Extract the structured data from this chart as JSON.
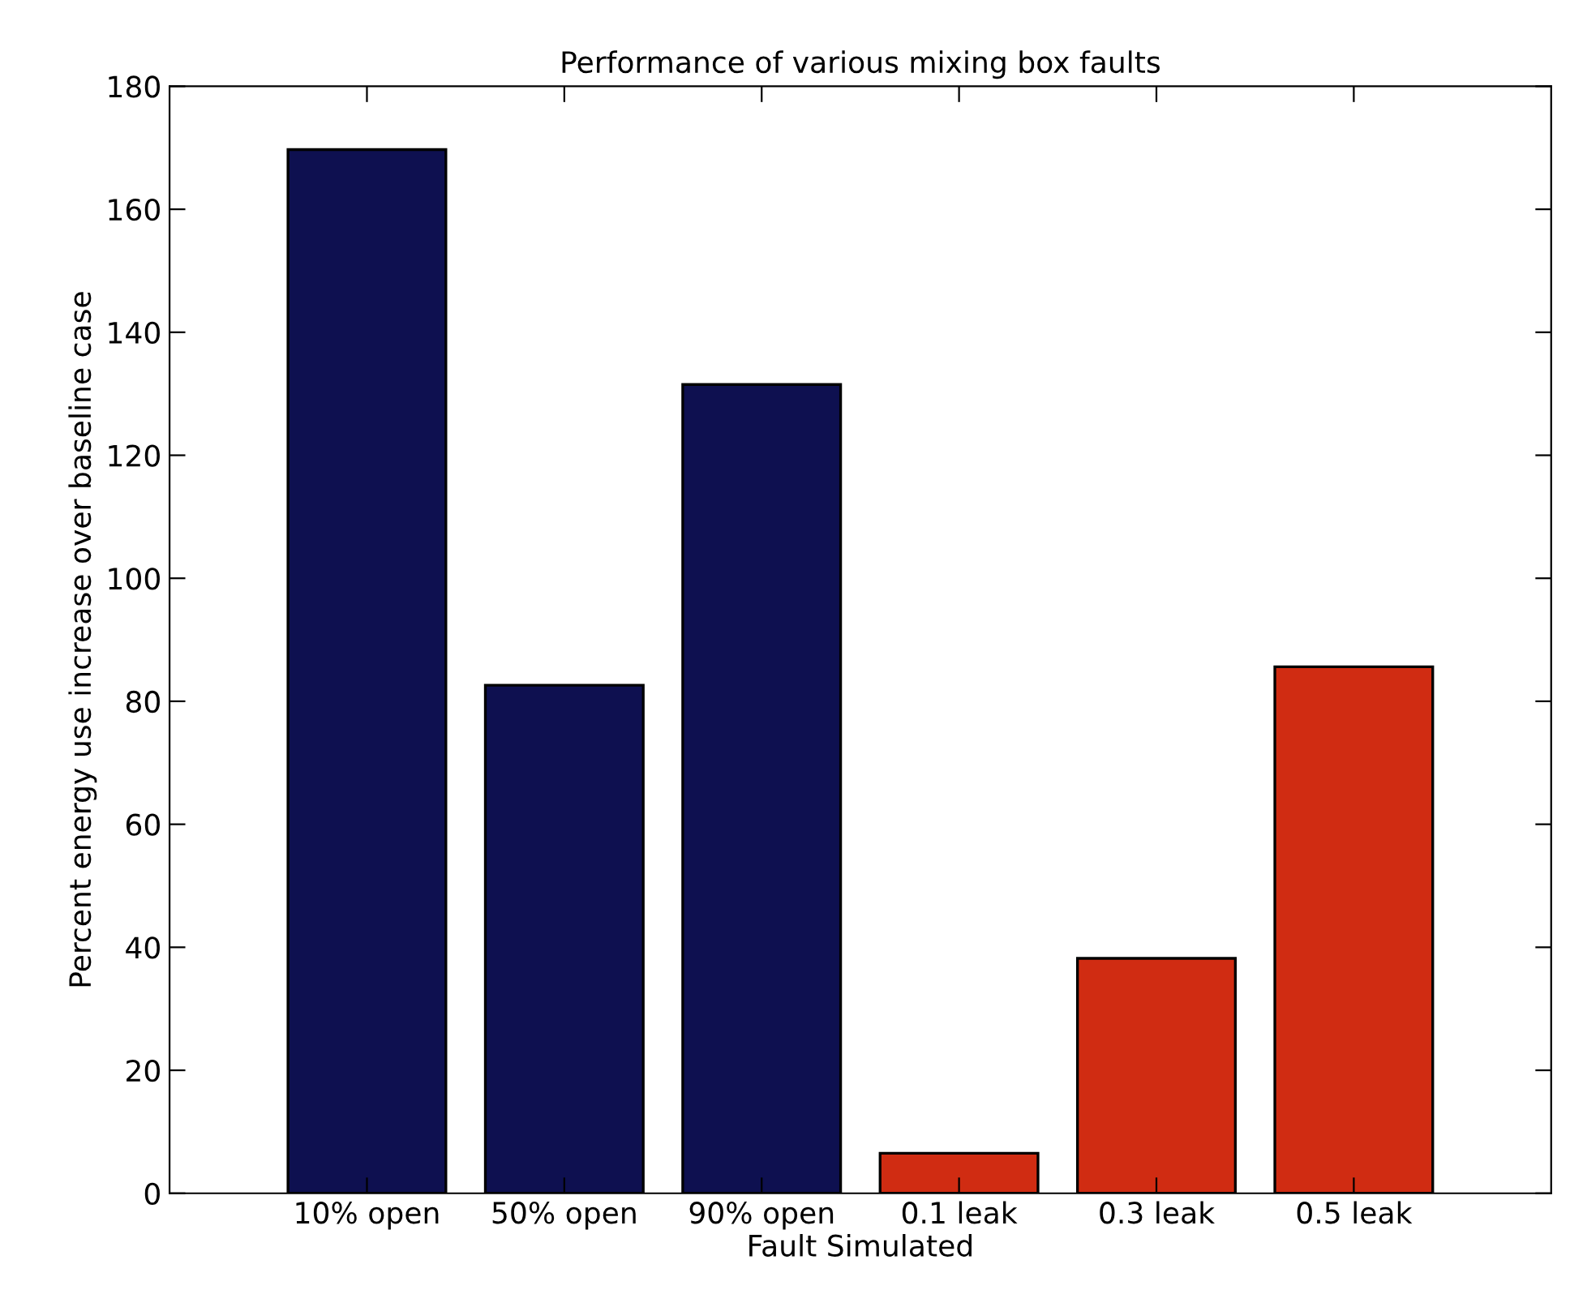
{
  "chart_data": {
    "type": "bar",
    "title": "Performance of various mixing box faults",
    "xlabel": "Fault Simulated",
    "ylabel": "Percent energy use increase over baseline case",
    "categories": [
      "10% open",
      "50% open",
      "90% open",
      "0.1 leak",
      "0.3 leak",
      "0.5 leak"
    ],
    "values": [
      169.7,
      82.6,
      131.5,
      6.5,
      38.2,
      85.6
    ],
    "colors": [
      "#0e1050",
      "#0e1050",
      "#0e1050",
      "#d02c12",
      "#d02c12",
      "#d02c12"
    ],
    "ylim": [
      0,
      180
    ],
    "yticks": [
      0,
      20,
      40,
      60,
      80,
      100,
      120,
      140,
      160,
      180
    ],
    "grid": false,
    "legend": false
  }
}
